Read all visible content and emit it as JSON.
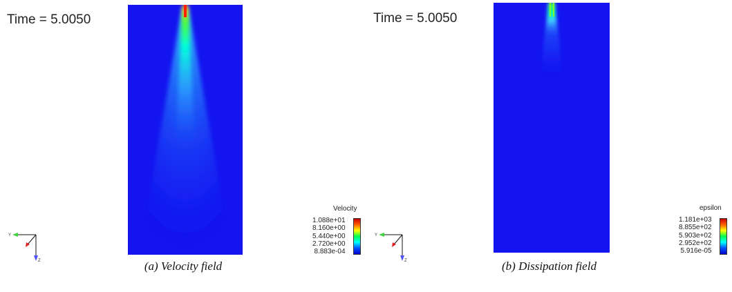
{
  "panels": [
    {
      "time_label": "Time = 5.0050",
      "legend": {
        "title": "Velocity",
        "ticks": [
          "1.088e+01",
          "8.160e+00",
          "5.440e+00",
          "2.720e+00",
          "8.883e-04"
        ]
      },
      "caption": "(a) Velocity field",
      "axis_labels": {
        "y": "Y",
        "z": "Z"
      }
    },
    {
      "time_label": "Time = 5.0050",
      "legend": {
        "title": "epsilon",
        "ticks": [
          "1.181e+03",
          "8.855e+02",
          "5.903e+02",
          "2.952e+02",
          "5.916e-05"
        ]
      },
      "caption": "(b) Dissipation field",
      "axis_labels": {
        "y": "Y",
        "z": "Z"
      }
    }
  ],
  "colors": {
    "field_background": "#1414f0",
    "colormap": [
      "#0000c8",
      "#0050ff",
      "#00ffff",
      "#00ff50",
      "#ffff00",
      "#ff6000",
      "#c80000"
    ]
  }
}
